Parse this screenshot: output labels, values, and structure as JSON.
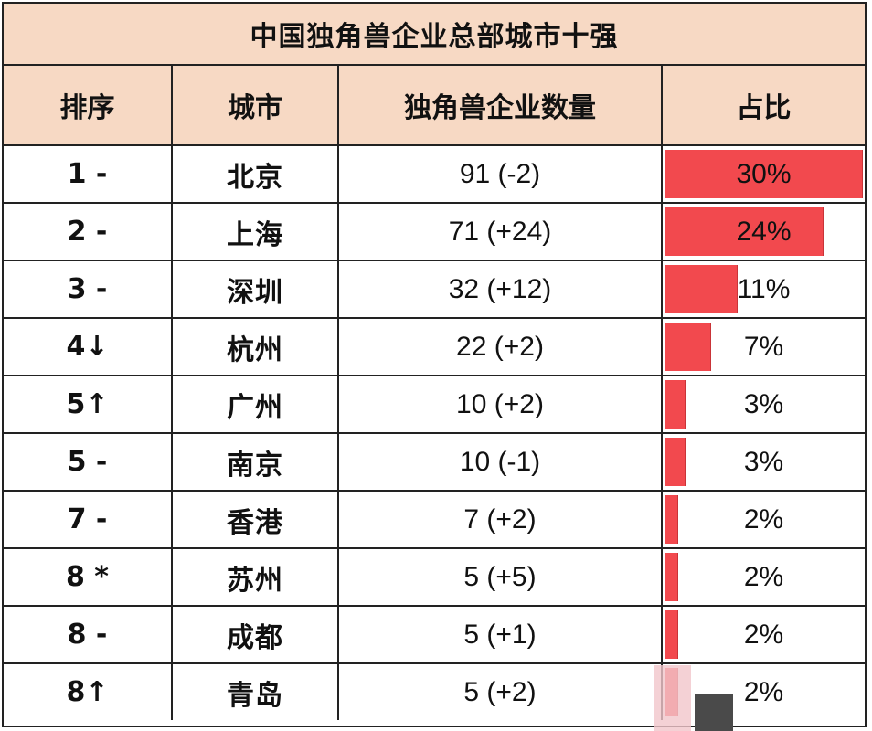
{
  "chart_data": {
    "type": "table",
    "title": "中国独角兽企业总部城市十强",
    "columns": [
      "排序",
      "城市",
      "独角兽企业数量",
      "占比"
    ],
    "rows": [
      {
        "rank": "1 -",
        "city": "北京",
        "count": "91 (-2)",
        "share_label": "30%",
        "share": 30
      },
      {
        "rank": "2 -",
        "city": "上海",
        "count": "71 (+24)",
        "share_label": "24%",
        "share": 24
      },
      {
        "rank": "3 -",
        "city": "深圳",
        "count": "32 (+12)",
        "share_label": "11%",
        "share": 11
      },
      {
        "rank": "4↓",
        "city": "杭州",
        "count": "22 (+2)",
        "share_label": "7%",
        "share": 7
      },
      {
        "rank": "5↑",
        "city": "广州",
        "count": "10 (+2)",
        "share_label": "3%",
        "share": 3
      },
      {
        "rank": "5 -",
        "city": "南京",
        "count": "10 (-1)",
        "share_label": "3%",
        "share": 3
      },
      {
        "rank": "7 -",
        "city": "香港",
        "count": "7 (+2)",
        "share_label": "2%",
        "share": 2
      },
      {
        "rank": "8 *",
        "city": "苏州",
        "count": "5 (+5)",
        "share_label": "2%",
        "share": 2
      },
      {
        "rank": "8 -",
        "city": "成都",
        "count": "5 (+1)",
        "share_label": "2%",
        "share": 2
      },
      {
        "rank": "8↑",
        "city": "青岛",
        "count": "5 (+2)",
        "share_label": "2%",
        "share": 2
      }
    ],
    "share_max": 30
  },
  "colors": {
    "header_bg": "#f7d9c4",
    "bar": "#f2494e",
    "border": "#222222"
  }
}
